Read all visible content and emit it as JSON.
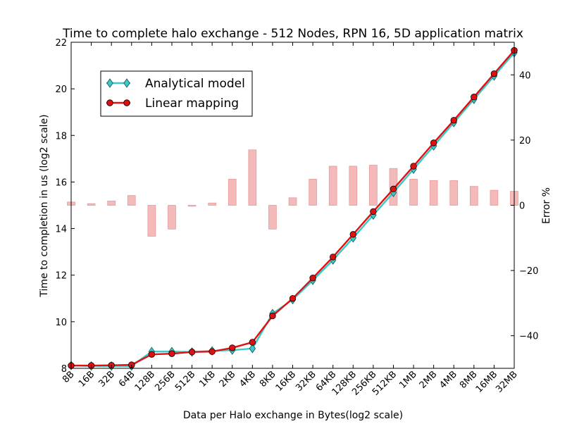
{
  "chart_data": {
    "type": "line",
    "title": "Time to complete halo exchange - 512 Nodes, RPN 16, 5D application matrix",
    "xlabel": "Data per Halo exchange in Bytes(log2 scale)",
    "ylabel": "Time to completion in us (log2 scale)",
    "ylabel_right": "Error %",
    "categories": [
      "8B",
      "16B",
      "32B",
      "64B",
      "128B",
      "256B",
      "512B",
      "1KB",
      "2KB",
      "4KB",
      "8KB",
      "16KB",
      "32KB",
      "64KB",
      "128KB",
      "256KB",
      "512KB",
      "1MB",
      "2MB",
      "4MB",
      "8MB",
      "16MB",
      "32MB"
    ],
    "ylim": [
      8,
      22
    ],
    "yticks": [
      8,
      10,
      12,
      14,
      16,
      18,
      20,
      22
    ],
    "y2lim": [
      -50,
      50
    ],
    "y2ticks": [
      -40,
      -20,
      0,
      20,
      40
    ],
    "legend_position": "upper-left",
    "series": [
      {
        "name": "Analytical model",
        "axis": "left",
        "color": "#3cc8c8",
        "marker": "diamond",
        "values": [
          8.12,
          8.1,
          8.1,
          8.1,
          8.72,
          8.72,
          8.7,
          8.75,
          8.78,
          8.85,
          10.35,
          10.95,
          11.78,
          12.65,
          13.6,
          14.58,
          15.55,
          16.55,
          17.55,
          18.55,
          19.55,
          20.55,
          21.55
        ]
      },
      {
        "name": "Linear mapping",
        "axis": "left",
        "color": "#e01010",
        "marker": "circle",
        "values": [
          8.12,
          8.12,
          8.13,
          8.15,
          8.6,
          8.63,
          8.7,
          8.72,
          8.88,
          9.12,
          10.25,
          11.0,
          11.88,
          12.78,
          13.75,
          14.73,
          15.7,
          16.68,
          17.68,
          18.65,
          19.65,
          20.65,
          21.65
        ]
      },
      {
        "name": "Error %",
        "axis": "right",
        "type": "bar",
        "color": "#f4baba",
        "values": [
          1.0,
          0.5,
          1.3,
          3.0,
          -9.5,
          -7.3,
          -0.3,
          0.7,
          8.0,
          17.0,
          -7.3,
          2.3,
          8.0,
          12.0,
          12.0,
          12.3,
          11.3,
          8.0,
          7.6,
          7.6,
          5.8,
          4.6,
          4.3
        ]
      }
    ]
  }
}
